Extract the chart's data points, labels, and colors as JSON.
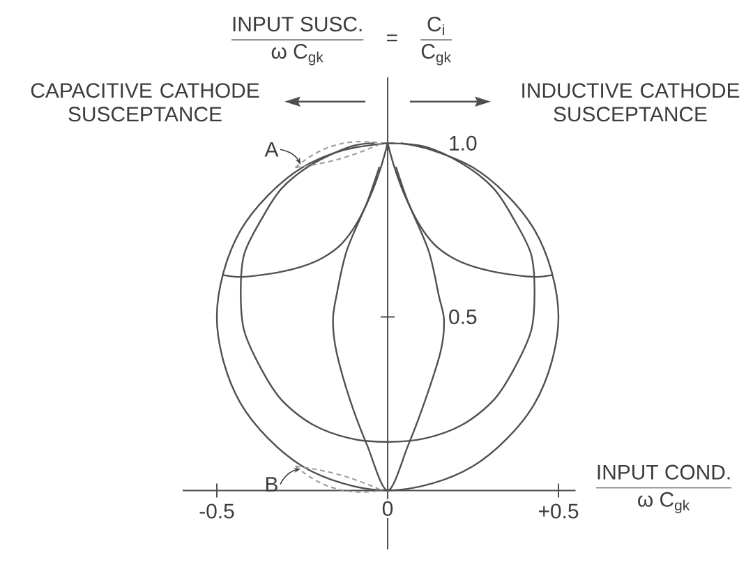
{
  "chart_data": {
    "type": "line",
    "ylabel": "\\frac{\\text{INPUT SUSC.}}{\\text{ω C}_{\\text{gk}}}\\quad\\text{=}\\quad\\frac{\\text{C}_{\\text{i}}}{\\text{C}_{\\text{gk}}}",
    "xlabel": "\\frac{\\text{INPUT COND.}}{\\text{ω C}_{\\text{gk}}}",
    "annotations": [
      "CAPACITIVE CATHODE SUSCEPTANCE",
      "INDUCTIVE CATHODE SUSCEPTANCE",
      {
        "text": "A",
        "x": -0.25,
        "y": 0.93
      },
      {
        "text": "B",
        "x": -0.25,
        "y": 0.07
      }
    ],
    "xlim": [
      -0.6,
      0.55
    ],
    "ylim": [
      -0.17,
      1.19
    ],
    "xticks": [
      -0.5,
      0,
      {
        "value": 0.5,
        "label": "+0.5"
      }
    ],
    "yticks": [
      0.5,
      {
        "value": 1,
        "label": "1.0"
      }
    ],
    "series": [
      {
        "color": "#505050",
        "x": [
          0,
          -0.13,
          -0.25,
          -0.35,
          -0.43,
          -0.48,
          -0.5,
          -0.48,
          -0.43,
          -0.35,
          -0.25,
          -0.13,
          0,
          0.13,
          0.25,
          0.35,
          0.43,
          0.48,
          0.5,
          0.48,
          0.43,
          0.35,
          0.25,
          0.13,
          0.04
        ],
        "values": [
          1,
          0.98,
          0.93,
          0.85,
          0.75,
          0.63,
          0.5,
          0.37,
          0.25,
          0.15,
          0.07,
          0.02,
          0,
          0.02,
          0.07,
          0.15,
          0.25,
          0.37,
          0.5,
          0.63,
          0.75,
          0.85,
          0.93,
          0.98,
          1
        ]
      },
      {
        "color": "#505050",
        "x": [
          -0.04,
          -0.11,
          -0.22,
          -0.31,
          -0.37,
          -0.42,
          -0.43,
          -0.42,
          -0.37,
          -0.31,
          -0.22,
          -0.11,
          0,
          0.11,
          0.22,
          0.31,
          0.37,
          0.42,
          0.43,
          0.42,
          0.37,
          0.31,
          0.22,
          0.11,
          0
        ],
        "values": [
          1,
          0.99,
          0.94,
          0.87,
          0.78,
          0.68,
          0.57,
          0.46,
          0.35,
          0.26,
          0.19,
          0.15,
          0.14,
          0.15,
          0.19,
          0.26,
          0.35,
          0.46,
          0.57,
          0.68,
          0.78,
          0.87,
          0.94,
          0.99,
          1
        ]
      },
      {
        "color": "#505050",
        "x": [
          -0.025,
          -0.06,
          -0.12,
          -0.15,
          -0.16,
          -0.15,
          -0.11,
          -0.06,
          0,
          0.06,
          0.11,
          0.155,
          0.165,
          0.15,
          0.12,
          0.06,
          0.025
        ],
        "values": [
          0.93,
          0.83,
          0.69,
          0.56,
          0.49,
          0.4,
          0.26,
          0.13,
          0,
          0.13,
          0.26,
          0.4,
          0.49,
          0.56,
          0.69,
          0.83,
          0.93
        ]
      },
      {
        "color": "#505050",
        "x": [
          0,
          -0.02,
          -0.05,
          -0.09,
          -0.135,
          -0.19,
          -0.25,
          -0.32,
          -0.39,
          -0.44,
          -0.48
        ],
        "values": [
          1,
          0.93,
          0.85,
          0.77,
          0.71,
          0.67,
          0.645,
          0.628,
          0.618,
          0.615,
          0.62
        ]
      },
      {
        "color": "#505050",
        "x": [
          0,
          0.02,
          0.05,
          0.09,
          0.135,
          0.19,
          0.25,
          0.32,
          0.39,
          0.44,
          0.48
        ],
        "values": [
          1,
          0.93,
          0.85,
          0.77,
          0.71,
          0.67,
          0.645,
          0.628,
          0.618,
          0.615,
          0.62
        ]
      }
    ]
  }
}
